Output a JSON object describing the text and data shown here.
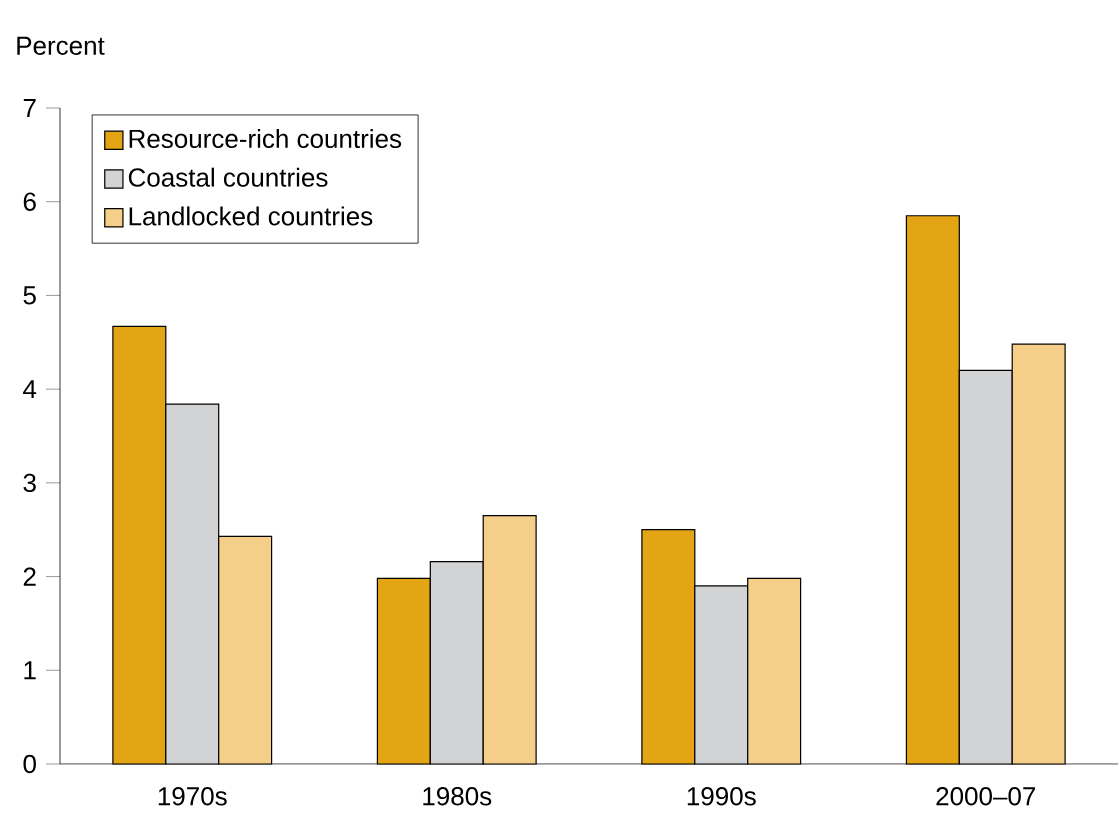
{
  "chart_data": {
    "type": "bar",
    "ylabel": "Percent",
    "categories": [
      "1970s",
      "1980s",
      "1990s",
      "2000–07"
    ],
    "series": [
      {
        "name": "Resource-rich countries",
        "color": "#e3a514",
        "values": [
          4.67,
          1.98,
          2.5,
          5.85
        ]
      },
      {
        "name": "Coastal countries",
        "color": "#d1d3d5",
        "values": [
          3.84,
          2.16,
          1.9,
          4.2
        ]
      },
      {
        "name": "Landlocked countries",
        "color": "#f5cf8a",
        "values": [
          2.43,
          2.65,
          1.98,
          4.48
        ]
      }
    ],
    "ylim": [
      0,
      7
    ],
    "yticks": [
      0,
      1,
      2,
      3,
      4,
      5,
      6,
      7
    ],
    "legend": "top left"
  }
}
